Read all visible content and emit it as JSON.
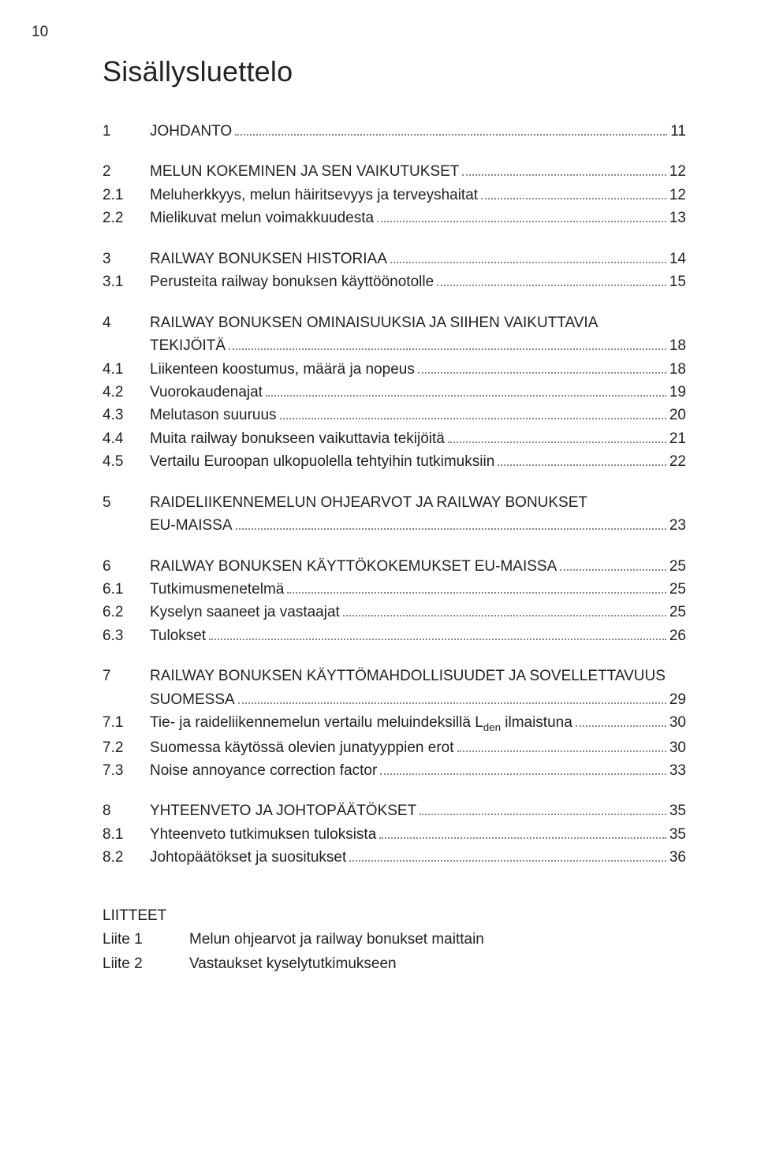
{
  "page_number": "10",
  "title": "Sisällysluettelo",
  "entries": [
    {
      "num": "1",
      "label": "JOHDANTO",
      "page": "11",
      "gap_before": false
    },
    {
      "num": "2",
      "label": "MELUN KOKEMINEN JA SEN VAIKUTUKSET",
      "page": "12",
      "gap_before": true
    },
    {
      "num": "2.1",
      "label": "Meluherkkyys, melun häiritsevyys ja terveyshaitat",
      "page": "12"
    },
    {
      "num": "2.2",
      "label": "Mielikuvat melun voimakkuudesta",
      "page": "13"
    },
    {
      "num": "3",
      "label": "RAILWAY BONUKSEN HISTORIAA",
      "page": "14",
      "gap_before": true
    },
    {
      "num": "3.1",
      "label": "Perusteita railway bonuksen käyttöönotolle",
      "page": "15"
    },
    {
      "num": "4",
      "label": "RAILWAY BONUKSEN OMINAISUUKSIA JA SIIHEN VAIKUTTAVIA",
      "wrap": "TEKIJÖITÄ",
      "page": "18",
      "gap_before": true
    },
    {
      "num": "4.1",
      "label": "Liikenteen koostumus, määrä ja nopeus",
      "page": "18"
    },
    {
      "num": "4.2",
      "label": "Vuorokaudenajat",
      "page": "19"
    },
    {
      "num": "4.3",
      "label": "Melutason suuruus",
      "page": "20"
    },
    {
      "num": "4.4",
      "label": "Muita railway bonukseen vaikuttavia tekijöitä",
      "page": "21"
    },
    {
      "num": "4.5",
      "label": "Vertailu Euroopan ulkopuolella tehtyihin tutkimuksiin",
      "page": "22"
    },
    {
      "num": "5",
      "label": "RAIDELIIKENNEMELUN OHJEARVOT JA RAILWAY BONUKSET",
      "wrap": "EU-MAISSA",
      "page": "23",
      "gap_before": true
    },
    {
      "num": "6",
      "label": "RAILWAY BONUKSEN KÄYTTÖKOKEMUKSET EU-MAISSA",
      "page": "25",
      "gap_before": true
    },
    {
      "num": "6.1",
      "label": "Tutkimusmenetelmä",
      "page": "25"
    },
    {
      "num": "6.2",
      "label": "Kyselyn saaneet ja vastaajat",
      "page": "25"
    },
    {
      "num": "6.3",
      "label": "Tulokset",
      "page": "26"
    },
    {
      "num": "7",
      "label": "RAILWAY BONUKSEN KÄYTTÖMAHDOLLISUUDET JA SOVELLETTAVUUS",
      "wrap": "SUOMESSA",
      "page": "29",
      "gap_before": true
    },
    {
      "num": "7.1",
      "label_html": "Tie- ja raideliikennemelun vertailu meluindeksillä L<sub>den</sub> ilmaistuna",
      "page": "30"
    },
    {
      "num": "7.2",
      "label": "Suomessa käytössä olevien junatyyppien erot",
      "page": "30"
    },
    {
      "num": "7.3",
      "label": "Noise annoyance correction factor",
      "page": "33"
    },
    {
      "num": "8",
      "label": "YHTEENVETO JA JOHTOPÄÄTÖKSET",
      "page": "35",
      "gap_before": true
    },
    {
      "num": "8.1",
      "label": "Yhteenveto tutkimuksen tuloksista",
      "page": "35"
    },
    {
      "num": "8.2",
      "label": "Johtopäätökset ja suositukset",
      "page": "36"
    }
  ],
  "appendix": {
    "heading": "LIITTEET",
    "items": [
      {
        "key": "Liite 1",
        "text": "Melun ohjearvot ja railway bonukset maittain"
      },
      {
        "key": "Liite 2",
        "text": "Vastaukset kyselytutkimukseen"
      }
    ]
  }
}
